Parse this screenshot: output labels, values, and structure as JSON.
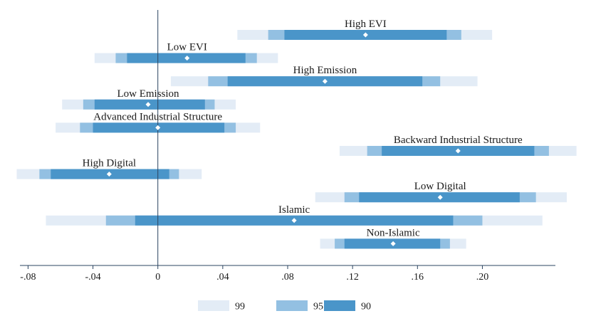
{
  "chart_data": {
    "type": "interval",
    "title": "",
    "xlabel": "",
    "ylabel": "",
    "xlim": [
      -0.085,
      0.245
    ],
    "xticks": [
      {
        "value": -0.08,
        "label": "-.08"
      },
      {
        "value": -0.04,
        "label": "-.04"
      },
      {
        "value": 0,
        "label": "0"
      },
      {
        "value": 0.04,
        "label": ".04"
      },
      {
        "value": 0.08,
        "label": ".08"
      },
      {
        "value": 0.12,
        "label": ".12"
      },
      {
        "value": 0.16,
        "label": ".16"
      },
      {
        "value": 0.2,
        "label": ".20"
      }
    ],
    "reference_line": 0,
    "series": [
      {
        "name": "High EVI",
        "estimate": 0.128,
        "ci99": [
          0.049,
          0.206
        ],
        "ci95": [
          0.068,
          0.187
        ],
        "ci90": [
          0.078,
          0.178
        ]
      },
      {
        "name": "Low EVI",
        "estimate": 0.018,
        "ci99": [
          -0.039,
          0.074
        ],
        "ci95": [
          -0.026,
          0.061
        ],
        "ci90": [
          -0.019,
          0.054
        ]
      },
      {
        "name": "High Emission",
        "estimate": 0.103,
        "ci99": [
          0.008,
          0.197
        ],
        "ci95": [
          0.031,
          0.174
        ],
        "ci90": [
          0.043,
          0.163
        ]
      },
      {
        "name": "Low Emission",
        "estimate": -0.006,
        "ci99": [
          -0.059,
          0.048
        ],
        "ci95": [
          -0.046,
          0.035
        ],
        "ci90": [
          -0.039,
          0.029
        ]
      },
      {
        "name": "Advanced Industrial Structure",
        "estimate": 0.0,
        "ci99": [
          -0.063,
          0.063
        ],
        "ci95": [
          -0.048,
          0.048
        ],
        "ci90": [
          -0.04,
          0.041
        ]
      },
      {
        "name": "Backward Industrial Structure",
        "estimate": 0.185,
        "ci99": [
          0.112,
          0.258
        ],
        "ci95": [
          0.129,
          0.241
        ],
        "ci90": [
          0.138,
          0.232
        ]
      },
      {
        "name": "High Digital",
        "estimate": -0.03,
        "ci99": [
          -0.087,
          0.027
        ],
        "ci95": [
          -0.073,
          0.013
        ],
        "ci90": [
          -0.066,
          0.007
        ]
      },
      {
        "name": "Low Digital",
        "estimate": 0.174,
        "ci99": [
          0.097,
          0.252
        ],
        "ci95": [
          0.115,
          0.233
        ],
        "ci90": [
          0.124,
          0.223
        ]
      },
      {
        "name": "Islamic",
        "estimate": 0.084,
        "ci99": [
          -0.069,
          0.237
        ],
        "ci95": [
          -0.032,
          0.2
        ],
        "ci90": [
          -0.014,
          0.182
        ]
      },
      {
        "name": "Non-Islamic",
        "estimate": 0.145,
        "ci99": [
          0.1,
          0.19
        ],
        "ci95": [
          0.109,
          0.18
        ],
        "ci90": [
          0.115,
          0.174
        ]
      }
    ],
    "legend": [
      {
        "label": "99",
        "color": "#e3ecf6"
      },
      {
        "label": "95",
        "color": "#93c0e2"
      },
      {
        "label": "90",
        "color": "#4a95c9"
      }
    ],
    "legend_position": "bottom",
    "axis_color": "#2b4460",
    "marker_color": "#ffffff"
  }
}
